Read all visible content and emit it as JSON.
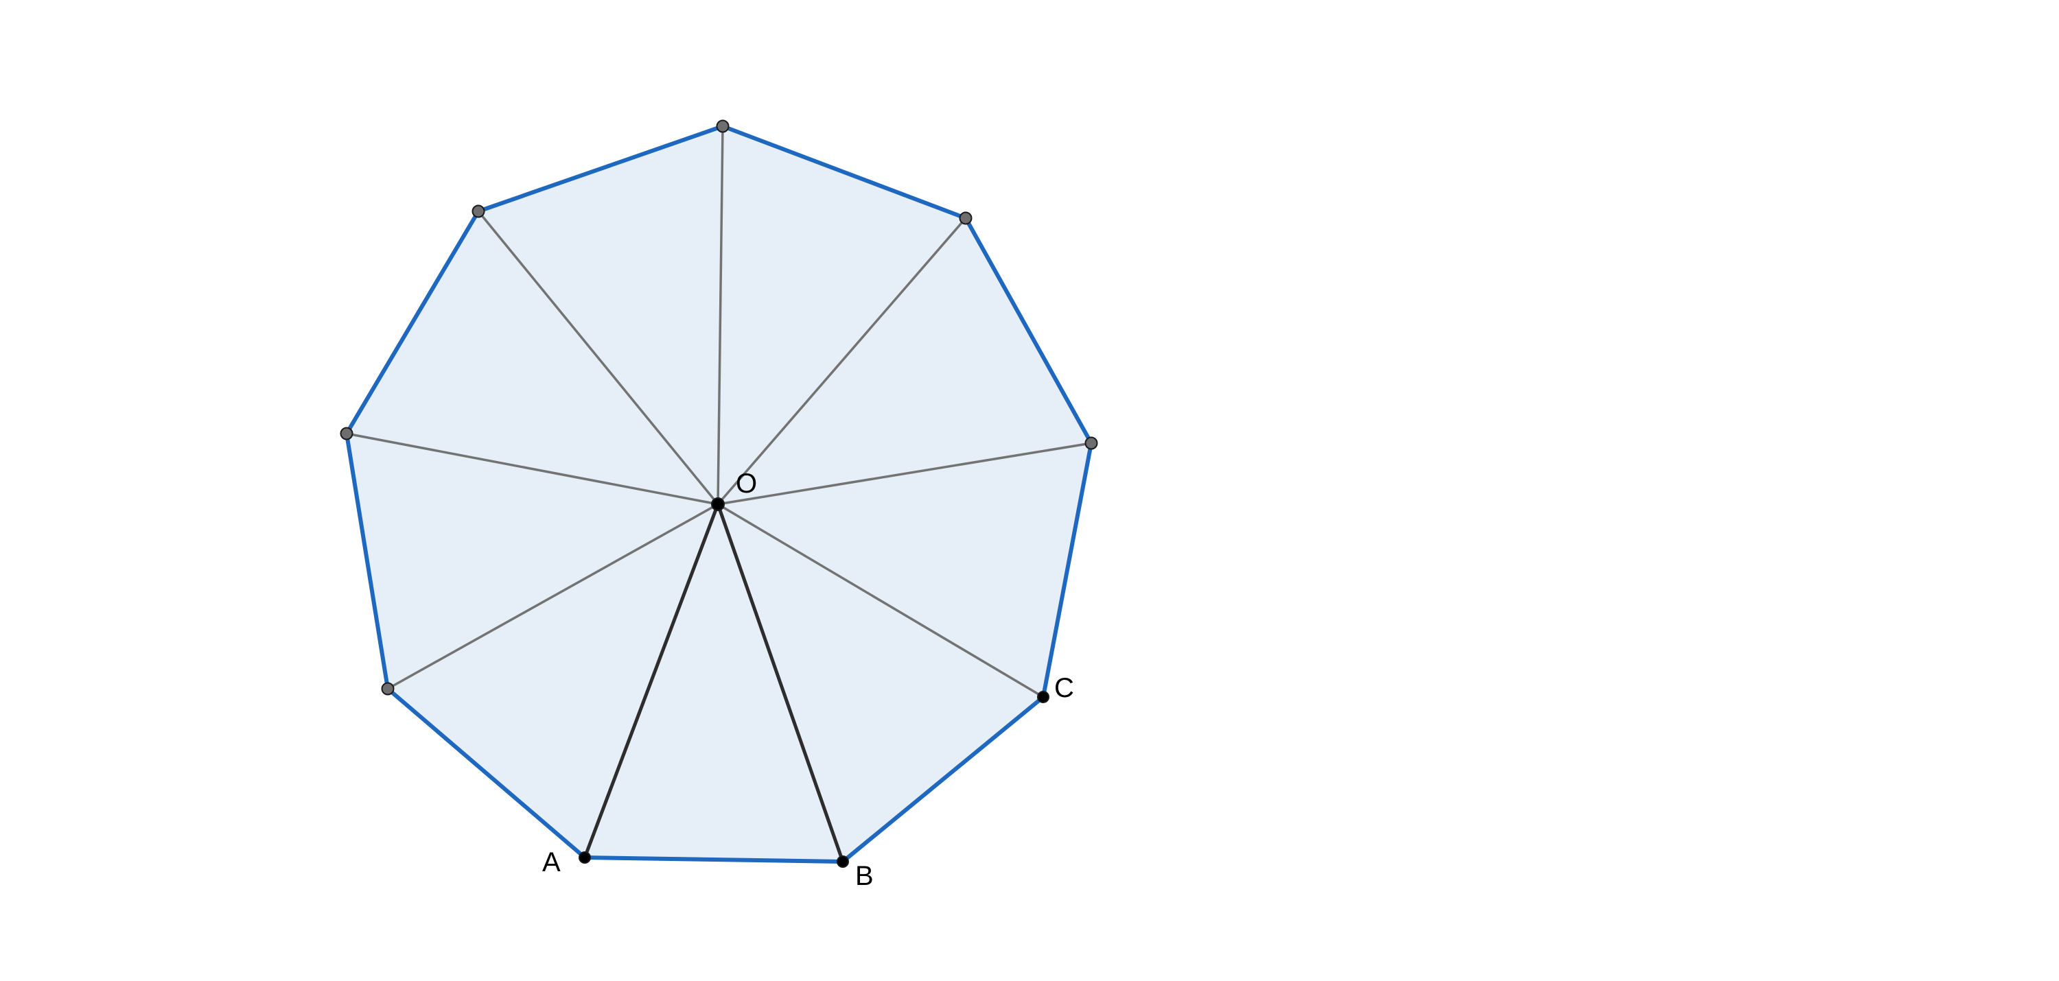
{
  "diagram": {
    "polygon_fill_color": "#e6eef8",
    "polygon_edge_color": "#1f68c0",
    "radius_color": "#737373",
    "highlight_radius_color": "#2d2d2d",
    "vertex_fill_color": "#6e6e6e",
    "labeled_point_color": "#000000",
    "center": {
      "label": "O"
    },
    "labeled_vertices": [
      {
        "id": "A",
        "label": "A"
      },
      {
        "id": "B",
        "label": "B"
      },
      {
        "id": "C",
        "label": "C"
      }
    ],
    "vertex_count": 9,
    "highlighted_radii": [
      "OA",
      "OB"
    ]
  }
}
